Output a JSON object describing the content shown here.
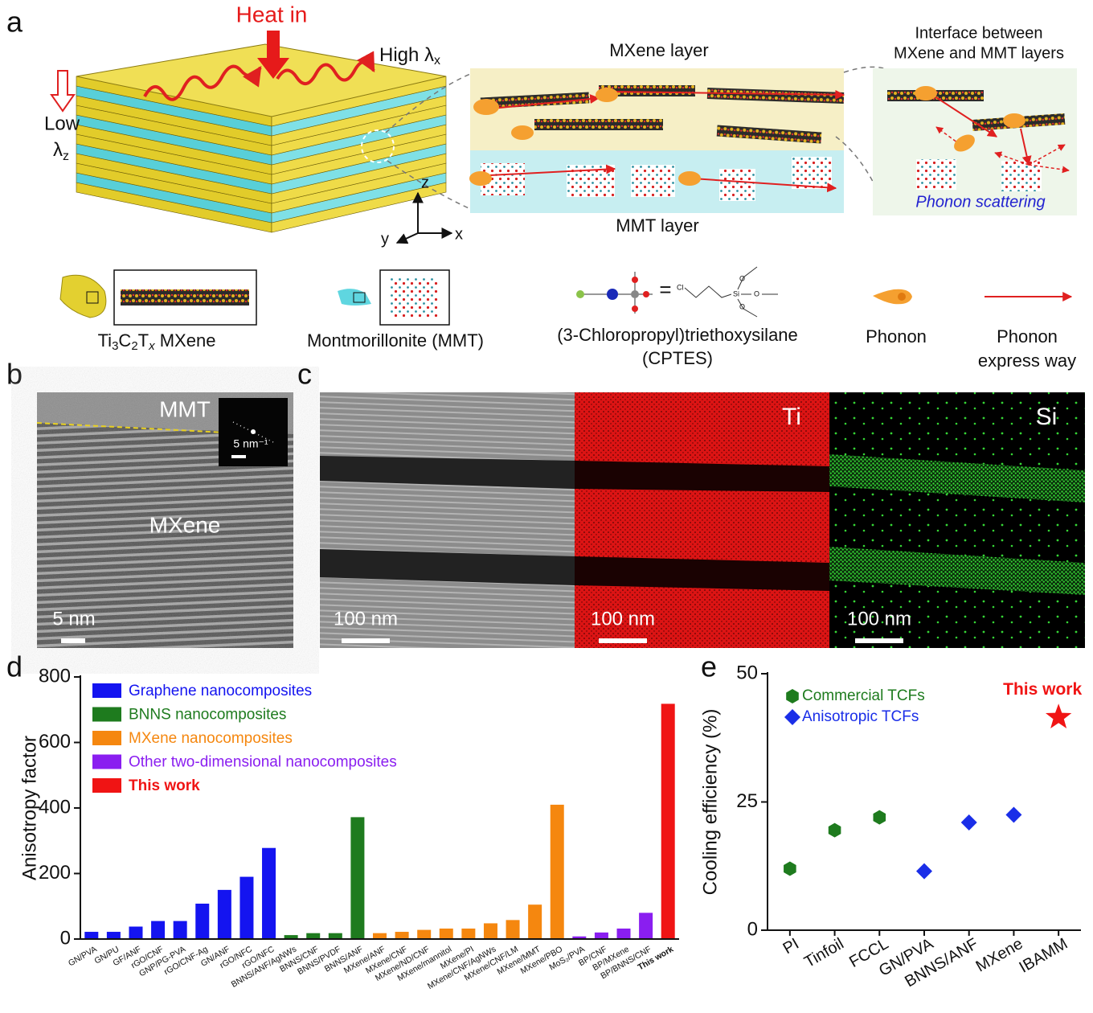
{
  "panel_a": {
    "label": "a",
    "heat_in": "Heat in",
    "high_lambda": [
      "High λ",
      "x"
    ],
    "low": "Low",
    "low_lambda": [
      "λ",
      "z"
    ],
    "mxene_layer": "MXene layer",
    "interface": [
      "Interface between",
      "MXene and MMT layers"
    ],
    "mmt_layer": "MMT layer",
    "phonon_scattering": "Phonon scattering",
    "axes": [
      "z",
      "y",
      "x"
    ],
    "legend": {
      "mxene": [
        "Ti",
        "3",
        "C",
        "2",
        "T",
        "x",
        " MXene"
      ],
      "mmt": "Montmorillonite (MMT)",
      "cptes_atoms": [
        "Cl",
        "Si",
        "O"
      ],
      "cptes": [
        "(3-Chloropropyl)triethoxysilane",
        "(CPTES)"
      ],
      "phonon": "Phonon",
      "express": [
        "Phonon",
        "express way"
      ]
    }
  },
  "panel_b": {
    "label": "b",
    "mmt": "MMT",
    "mxene": "MXene",
    "scale": "5 nm",
    "inset_scale": "5 nm⁻¹"
  },
  "panel_c": {
    "label": "c",
    "scales": [
      "100 nm",
      "100 nm",
      "100 nm"
    ],
    "elements": [
      "Ti",
      "Si"
    ]
  },
  "chart_data": [
    {
      "type": "bar",
      "panel_label": "d",
      "ylabel": "Anisotropy factor",
      "categories": [
        "GN/PVA",
        "GN/PU",
        "GF/ANF",
        "rGO/CNF",
        "GNP/PG-PVA",
        "rGO/CNF-Ag",
        "GN/ANF",
        "rGO/NFC",
        "rGO/NFC",
        "BNNS/ANF/AgNWs",
        "BNNS/CNF",
        "BNNS/PVDF",
        "BNNS/ANF",
        "MXene/ANF",
        "MXene/CNF",
        "MXene/ND/CNF",
        "MXene/mannitol",
        "MXene/PI",
        "MXene/CNF/AgNWs",
        "MXene/CNF/LM",
        "MXene/MMT",
        "MXene/PBO",
        "MoS₂/PVA",
        "BP/CNF",
        "BP/MXene",
        "BP/BNNS/CNF",
        "This work"
      ],
      "series": [
        {
          "name": "Graphene nanocomposites",
          "color": "#1414f0",
          "values": [
            22,
            22,
            38,
            55,
            55,
            108,
            150,
            190,
            278,
            null,
            null,
            null,
            null,
            null,
            null,
            null,
            null,
            null,
            null,
            null,
            null,
            null,
            null,
            null,
            null,
            null,
            null
          ]
        },
        {
          "name": "BNNS nanocomposites",
          "color": "#1e7b1e",
          "values": [
            null,
            null,
            null,
            null,
            null,
            null,
            null,
            null,
            null,
            12,
            18,
            18,
            372,
            null,
            null,
            null,
            null,
            null,
            null,
            null,
            null,
            null,
            null,
            null,
            null,
            null,
            null
          ]
        },
        {
          "name": "MXene nanocomposites",
          "color": "#f5870f",
          "values": [
            null,
            null,
            null,
            null,
            null,
            null,
            null,
            null,
            null,
            null,
            null,
            null,
            null,
            18,
            22,
            28,
            32,
            32,
            48,
            58,
            105,
            410,
            null,
            null,
            null,
            null,
            null
          ]
        },
        {
          "name": "Other two-dimensional nanocomposites",
          "color": "#8a1ef0",
          "values": [
            null,
            null,
            null,
            null,
            null,
            null,
            null,
            null,
            null,
            null,
            null,
            null,
            null,
            null,
            null,
            null,
            null,
            null,
            null,
            null,
            null,
            null,
            8,
            20,
            32,
            80,
            null
          ]
        },
        {
          "name": "This work",
          "color": "#f01414",
          "values": [
            null,
            null,
            null,
            null,
            null,
            null,
            null,
            null,
            null,
            null,
            null,
            null,
            null,
            null,
            null,
            null,
            null,
            null,
            null,
            null,
            null,
            null,
            null,
            null,
            null,
            null,
            718
          ]
        }
      ],
      "ylim": [
        0,
        800
      ],
      "yticks": [
        0,
        200,
        400,
        600,
        800
      ]
    },
    {
      "type": "scatter",
      "panel_label": "e",
      "ylabel": "Cooling efficiency (%)",
      "categories": [
        "PI",
        "Tinfoil",
        "FCCL",
        "GN/PVA",
        "BNNS/ANF",
        "MXene",
        "IBAMM"
      ],
      "series": [
        {
          "name": "Commercial TCFs",
          "color": "#1e7b1e",
          "marker": "hexagon",
          "values": [
            12,
            19.5,
            22,
            null,
            null,
            null,
            null
          ]
        },
        {
          "name": "Anisotropic TCFs",
          "color": "#1a2ee8",
          "marker": "diamond",
          "values": [
            null,
            null,
            null,
            11.5,
            21,
            22.5,
            null
          ]
        },
        {
          "name": "This work",
          "color": "#f01414",
          "marker": "star",
          "values": [
            null,
            null,
            null,
            null,
            null,
            null,
            41.5
          ]
        }
      ],
      "ylim": [
        0,
        50
      ],
      "yticks": [
        0,
        25,
        50
      ]
    }
  ]
}
